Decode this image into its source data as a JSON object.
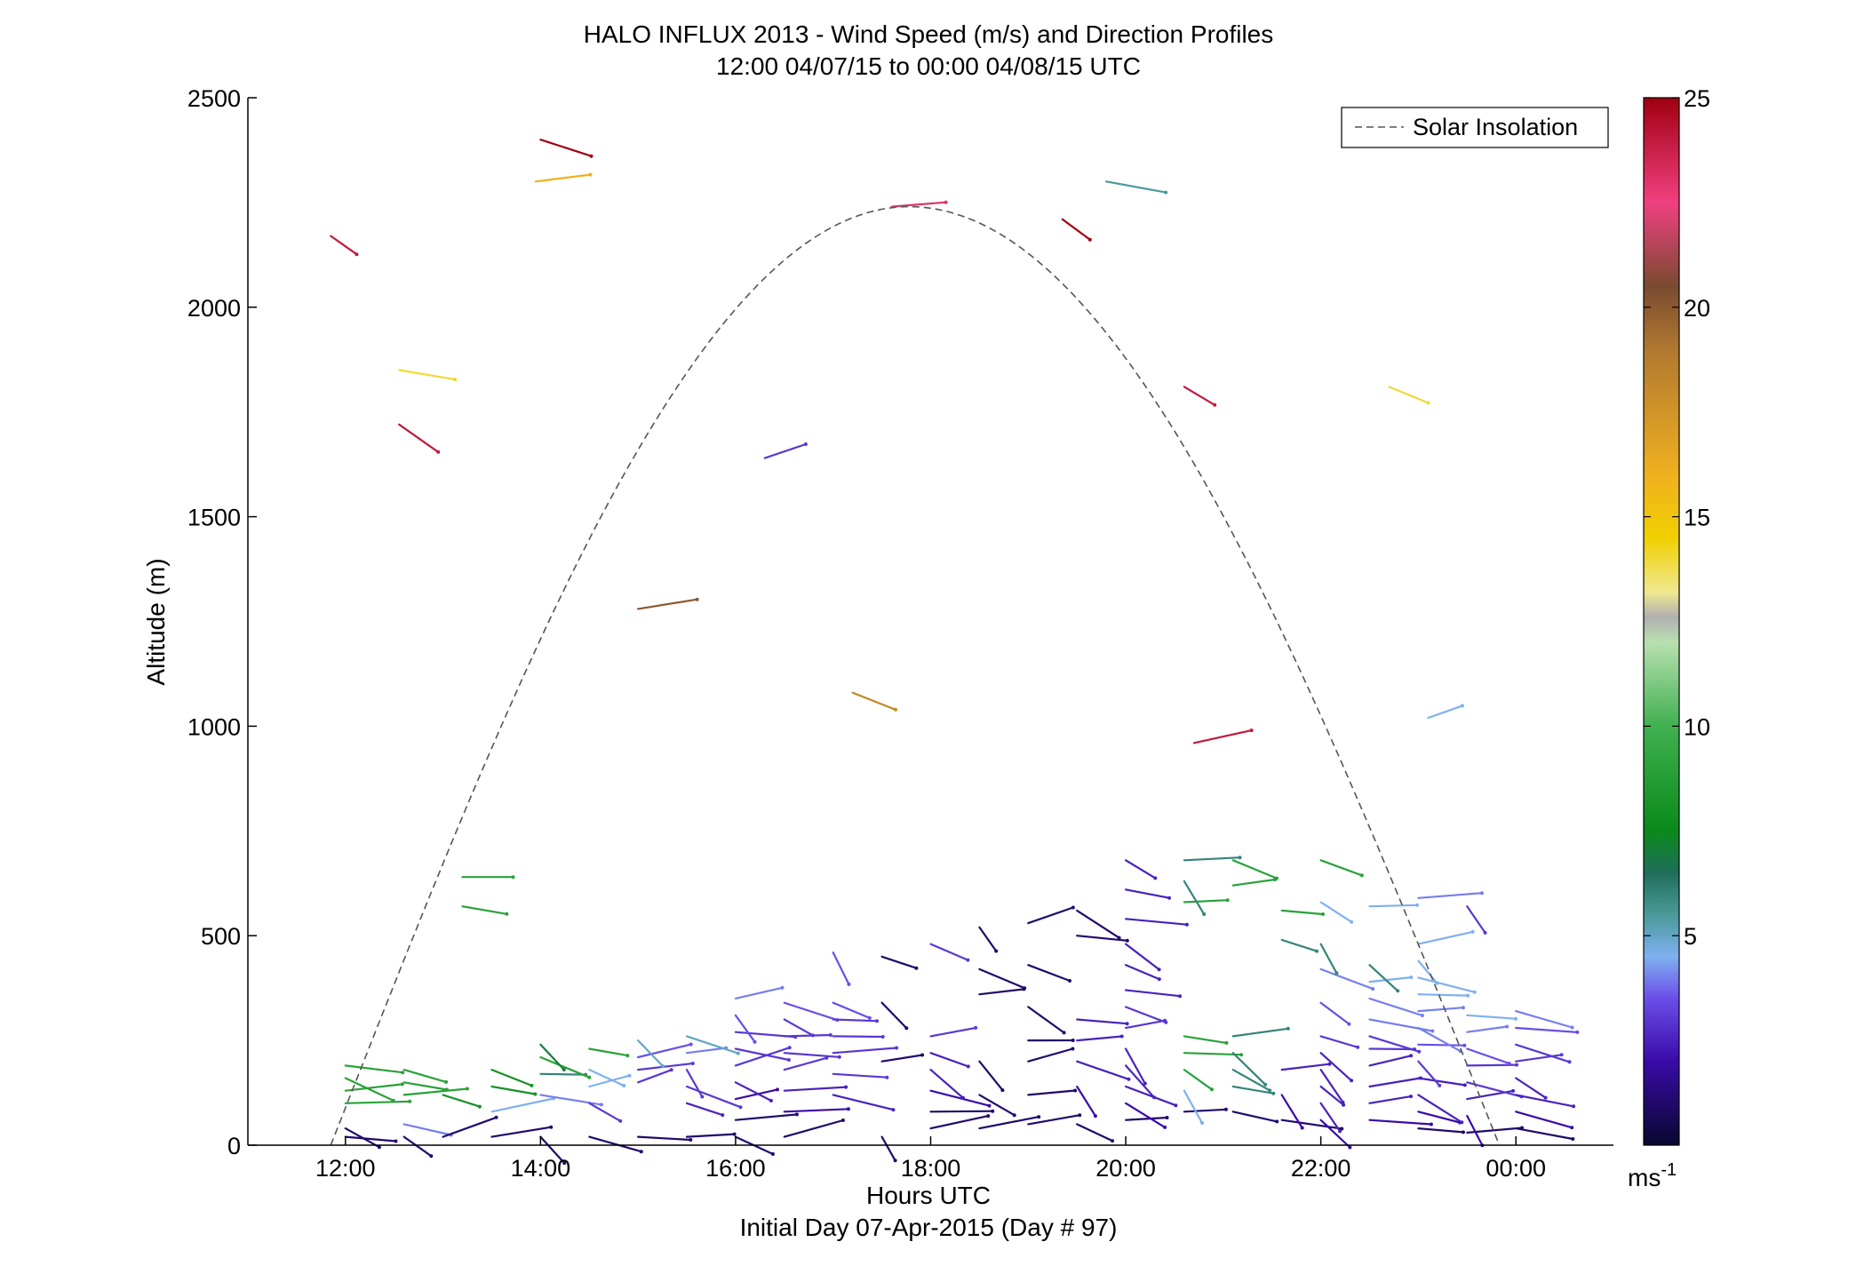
{
  "chart_data": {
    "type": "wind-barb-profile",
    "title": "HALO INFLUX 2013 - Wind Speed (m/s) and Direction Profiles",
    "subtitle": "12:00 04/07/15 to 00:00 04/08/15  UTC",
    "xlabel": "Hours UTC",
    "xlabel2": "Initial Day 07-Apr-2015 (Day # 97)",
    "ylabel": "Altitude (m)",
    "xlim_hours": [
      11,
      25
    ],
    "ylim": [
      0,
      2500
    ],
    "x_ticks": [
      {
        "hour": 12,
        "label": "12:00"
      },
      {
        "hour": 14,
        "label": "14:00"
      },
      {
        "hour": 16,
        "label": "16:00"
      },
      {
        "hour": 18,
        "label": "18:00"
      },
      {
        "hour": 20,
        "label": "20:00"
      },
      {
        "hour": 22,
        "label": "22:00"
      },
      {
        "hour": 24,
        "label": "00:00"
      }
    ],
    "y_ticks": [
      {
        "value": 0,
        "label": "0"
      },
      {
        "value": 500,
        "label": "500"
      },
      {
        "value": 1000,
        "label": "1000"
      },
      {
        "value": 1500,
        "label": "1500"
      },
      {
        "value": 2000,
        "label": "2000"
      },
      {
        "value": 2500,
        "label": "2500"
      }
    ],
    "legend": {
      "label": "Solar Insolation",
      "placement": "top-right",
      "line_color": "#555555",
      "line_style": "dashed"
    },
    "colorbar": {
      "range": [
        0,
        25
      ],
      "unit": "ms",
      "unit_exp": "-1",
      "ticks": [
        {
          "value": 5,
          "label": "5"
        },
        {
          "value": 10,
          "label": "10"
        },
        {
          "value": 15,
          "label": "15"
        },
        {
          "value": 20,
          "label": "20"
        },
        {
          "value": 25,
          "label": "25"
        }
      ],
      "stops": [
        {
          "v": 0,
          "c": "#08082e"
        },
        {
          "v": 2,
          "c": "#3a0aa8"
        },
        {
          "v": 3.5,
          "c": "#6a4ee8"
        },
        {
          "v": 4.5,
          "c": "#7fb0f0"
        },
        {
          "v": 5.5,
          "c": "#4a9a9a"
        },
        {
          "v": 6.5,
          "c": "#1f6e5a"
        },
        {
          "v": 7.5,
          "c": "#0a8a1a"
        },
        {
          "v": 10,
          "c": "#40b050"
        },
        {
          "v": 12,
          "c": "#b8e0b0"
        },
        {
          "v": 12.6,
          "c": "#b0b0b0"
        },
        {
          "v": 13.2,
          "c": "#f0e890"
        },
        {
          "v": 14.5,
          "c": "#f0d000"
        },
        {
          "v": 16,
          "c": "#f0b020"
        },
        {
          "v": 19,
          "c": "#b07830"
        },
        {
          "v": 20.5,
          "c": "#7a4a30"
        },
        {
          "v": 22.5,
          "c": "#f04080"
        },
        {
          "v": 25,
          "c": "#a00010"
        }
      ]
    },
    "solar_insolation": {
      "start_hour": 11.85,
      "peak_hour": 17.78,
      "end_hour": 23.83,
      "peak_altitude": 2240
    },
    "upper_barbs": [
      {
        "t": 11.85,
        "alt": 2170,
        "speed": 24
      },
      {
        "t": 14.0,
        "alt": 2400,
        "speed": 25
      },
      {
        "t": 13.95,
        "alt": 2300,
        "speed": 16
      },
      {
        "t": 12.55,
        "alt": 1850,
        "speed": 14
      },
      {
        "t": 12.55,
        "alt": 1720,
        "speed": 24
      },
      {
        "t": 15.0,
        "alt": 1280,
        "speed": 20
      },
      {
        "t": 16.3,
        "alt": 1640,
        "speed": 3
      },
      {
        "t": 17.2,
        "alt": 1080,
        "speed": 18
      },
      {
        "t": 17.6,
        "alt": 2240,
        "speed": 23
      },
      {
        "t": 19.35,
        "alt": 2210,
        "speed": 25
      },
      {
        "t": 19.8,
        "alt": 2300,
        "speed": 5.5
      },
      {
        "t": 20.6,
        "alt": 1810,
        "speed": 24
      },
      {
        "t": 20.7,
        "alt": 960,
        "speed": 24
      },
      {
        "t": 22.7,
        "alt": 1810,
        "speed": 14
      },
      {
        "t": 23.1,
        "alt": 1020,
        "speed": 4.5
      },
      {
        "t": 13.2,
        "alt": 640,
        "speed": 9
      },
      {
        "t": 13.2,
        "alt": 570,
        "speed": 9
      }
    ],
    "profile_columns": [
      {
        "t": 12.0,
        "alts": [
          20,
          40,
          100,
          130,
          160,
          190
        ],
        "speeds": [
          1,
          1,
          9,
          9,
          9,
          9
        ]
      },
      {
        "t": 12.6,
        "alts": [
          20,
          50,
          120,
          150,
          180
        ],
        "speeds": [
          1,
          4,
          9,
          9,
          9
        ]
      },
      {
        "t": 13.0,
        "alts": [
          20,
          120
        ],
        "speeds": [
          1,
          8
        ]
      },
      {
        "t": 13.5,
        "alts": [
          20,
          80,
          140,
          180
        ],
        "speeds": [
          1,
          4.5,
          8,
          8
        ]
      },
      {
        "t": 14.0,
        "alts": [
          20,
          120,
          170,
          210,
          240
        ],
        "speeds": [
          1,
          4,
          6,
          9,
          7
        ]
      },
      {
        "t": 14.5,
        "alts": [
          20,
          100,
          140,
          180,
          230
        ],
        "speeds": [
          1,
          3,
          4.5,
          4.5,
          9
        ]
      },
      {
        "t": 15.0,
        "alts": [
          20,
          150,
          180,
          210,
          250
        ],
        "speeds": [
          1,
          3,
          3,
          3.5,
          5
        ]
      },
      {
        "t": 15.5,
        "alts": [
          20,
          100,
          140,
          180,
          220,
          260
        ],
        "speeds": [
          1,
          2.5,
          3,
          3,
          4,
          5
        ]
      },
      {
        "t": 16.0,
        "alts": [
          20,
          60,
          110,
          150,
          190,
          230,
          270,
          310,
          350
        ],
        "speeds": [
          1,
          1,
          2,
          2.5,
          3,
          3,
          3,
          3.5,
          4
        ]
      },
      {
        "t": 16.5,
        "alts": [
          20,
          80,
          130,
          180,
          220,
          260,
          300,
          340
        ],
        "speeds": [
          1,
          2,
          2.5,
          3,
          3,
          3,
          3,
          3.5
        ]
      },
      {
        "t": 17.0,
        "alts": [
          120,
          170,
          220,
          260,
          300,
          340,
          460
        ],
        "speeds": [
          2.5,
          3,
          3,
          3,
          3,
          3.5,
          3.5
        ]
      },
      {
        "t": 17.5,
        "alts": [
          20,
          200,
          340,
          450
        ],
        "speeds": [
          1,
          1,
          1,
          1
        ]
      },
      {
        "t": 18.0,
        "alts": [
          40,
          80,
          130,
          180,
          220,
          260,
          480
        ],
        "speeds": [
          1,
          1,
          2,
          2.5,
          2.5,
          3,
          3
        ]
      },
      {
        "t": 18.5,
        "alts": [
          40,
          120,
          200,
          360,
          420,
          520
        ],
        "speeds": [
          1,
          1,
          1,
          1,
          1,
          1
        ]
      },
      {
        "t": 19.0,
        "alts": [
          50,
          120,
          200,
          250,
          330,
          430,
          530
        ],
        "speeds": [
          1,
          1,
          1,
          1,
          1,
          1,
          1
        ]
      },
      {
        "t": 19.5,
        "alts": [
          50,
          140,
          200,
          250,
          300,
          500,
          560
        ],
        "speeds": [
          1,
          2,
          2.5,
          2.5,
          2.5,
          1,
          1
        ]
      },
      {
        "t": 20.0,
        "alts": [
          60,
          100,
          140,
          190,
          230,
          280,
          330,
          370,
          430,
          480,
          540,
          610,
          680
        ],
        "speeds": [
          1,
          2,
          2.5,
          2.5,
          2.5,
          3,
          3,
          2.5,
          2.5,
          2.5,
          2.5,
          2.5,
          2.5
        ]
      },
      {
        "t": 20.6,
        "alts": [
          80,
          130,
          180,
          220,
          260,
          580,
          630,
          680
        ],
        "speeds": [
          1,
          4.5,
          9,
          9,
          9,
          9,
          6,
          6
        ]
      },
      {
        "t": 21.1,
        "alts": [
          80,
          140,
          180,
          220,
          260,
          620,
          680
        ],
        "speeds": [
          1,
          6,
          6,
          6,
          6,
          9,
          9
        ]
      },
      {
        "t": 21.6,
        "alts": [
          60,
          120,
          180,
          490,
          560
        ],
        "speeds": [
          1,
          2,
          2.5,
          6,
          9
        ]
      },
      {
        "t": 22.0,
        "alts": [
          60,
          100,
          140,
          180,
          220,
          260,
          340,
          420,
          480,
          580,
          680
        ],
        "speeds": [
          2,
          2.5,
          2.5,
          2.5,
          2.5,
          3,
          3.5,
          4,
          6,
          4.5,
          9
        ]
      },
      {
        "t": 22.5,
        "alts": [
          60,
          100,
          140,
          190,
          230,
          260,
          300,
          350,
          390,
          430,
          570
        ],
        "speeds": [
          2,
          2.5,
          2.5,
          2.5,
          3,
          3,
          4,
          4,
          4.5,
          6,
          4.5
        ]
      },
      {
        "t": 23.0,
        "alts": [
          40,
          80,
          120,
          160,
          200,
          240,
          280,
          320,
          360,
          400,
          440,
          480,
          590
        ],
        "speeds": [
          1,
          2,
          2.5,
          2.5,
          3,
          3.5,
          4,
          4,
          4.5,
          4.5,
          4.5,
          4.5,
          4
        ]
      },
      {
        "t": 23.5,
        "alts": [
          30,
          70,
          110,
          150,
          190,
          230,
          270,
          310,
          570
        ],
        "speeds": [
          1,
          2,
          2.5,
          3,
          3,
          3.5,
          4,
          4.5,
          3
        ]
      },
      {
        "t": 24.0,
        "alts": [
          40,
          80,
          120,
          160,
          200,
          240,
          280,
          320
        ],
        "speeds": [
          1,
          2,
          2.5,
          2.5,
          3,
          3,
          3.5,
          4
        ]
      }
    ]
  }
}
